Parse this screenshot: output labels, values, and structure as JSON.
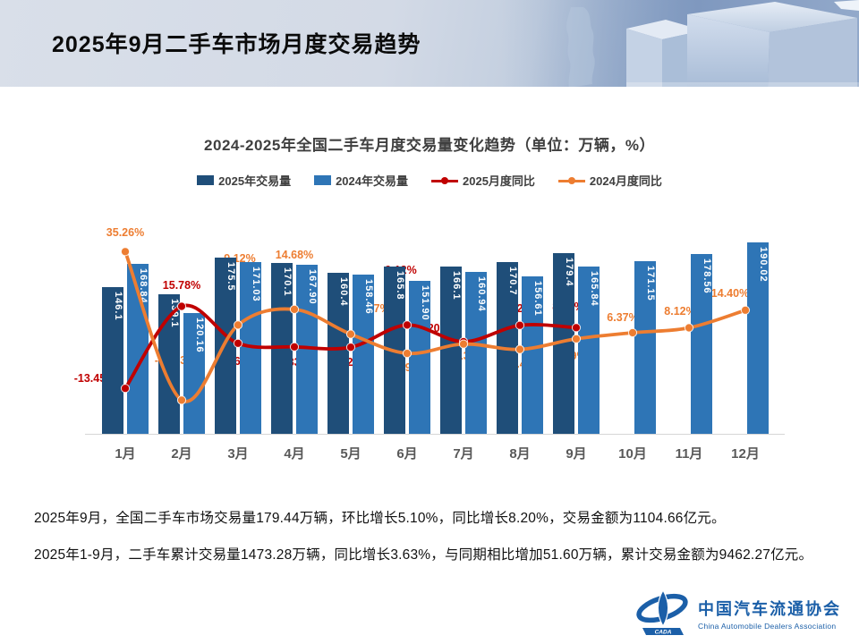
{
  "header": {
    "title": "2025年9月二手车市场月度交易趋势"
  },
  "chart_data": {
    "type": "bar",
    "subtype": "combo-bar-line",
    "title": "2024-2025年全国二手车月度交易量变化趋势（单位：万辆，%）",
    "categories": [
      "1月",
      "2月",
      "3月",
      "4月",
      "5月",
      "6月",
      "7月",
      "8月",
      "9月",
      "10月",
      "11月",
      "12月"
    ],
    "legend_position": "top",
    "grid": false,
    "ylim_bars": [
      0,
      195
    ],
    "ylim_pct": [
      -25,
      40
    ],
    "series": [
      {
        "name": "2025年交易量",
        "type": "bar",
        "unit": "万辆",
        "color": "#1f4e79",
        "values": [
          146.1,
          139.1,
          175.5,
          170.1,
          160.4,
          165.8,
          166.1,
          170.7,
          179.4
        ],
        "labels": [
          "146.1",
          "139.1",
          "175.5",
          "170.1",
          "160.4",
          "165.8",
          "166.1",
          "170.7",
          "179.4"
        ]
      },
      {
        "name": "2024年交易量",
        "type": "bar",
        "unit": "万辆",
        "color": "#2e75b6",
        "values": [
          168.84,
          120.16,
          171.03,
          167.9,
          158.46,
          151.9,
          160.94,
          156.61,
          165.84,
          171.15,
          178.56,
          190.02
        ],
        "labels": [
          "168.84",
          "120.16",
          "171.03",
          "167.90",
          "158.46",
          "151.90",
          "160.94",
          "156.61",
          "165.84",
          "171.15",
          "178.56",
          "190.02"
        ]
      },
      {
        "name": "2025月度同比",
        "type": "line",
        "unit": "%",
        "color": "#c00000",
        "values": [
          -13.45,
          15.78,
          2.6,
          1.33,
          1.22,
          9.12,
          3.2,
          9.02,
          8.2
        ],
        "labels": [
          "-13.45%",
          "15.78%",
          "2.60%",
          "1.33%",
          "1.22%",
          "9.12%",
          "3.20%",
          "9.02%",
          "8.20%"
        ]
      },
      {
        "name": "2024月度同比",
        "type": "line",
        "unit": "%",
        "color": "#ed7d31",
        "values": [
          35.26,
          -17.63,
          9.12,
          14.68,
          5.87,
          -0.98,
          2.37,
          0.43,
          4.19,
          6.37,
          8.12,
          14.4
        ],
        "labels": [
          "35.26%",
          "-17.63%",
          "9.12%",
          "14.68%",
          "5.87%",
          "-0.98%",
          "2.37%",
          "0.43%",
          "4.19%",
          "6.37%",
          "8.12%",
          "14.40%"
        ]
      }
    ]
  },
  "footnotes": [
    "2025年9月，全国二手车市场交易量179.44万辆，环比增长5.10%，同比增长8.20%，交易金额为1104.66亿元。",
    "2025年1-9月，二手车累计交易量1473.28万辆，同比增长3.63%，与同期相比增加51.60万辆，累计交易金额为9462.27亿元。"
  ],
  "logo": {
    "cn": "中国汽车流通协会",
    "en": "China Automobile Dealers Association",
    "badge": "CADA"
  }
}
